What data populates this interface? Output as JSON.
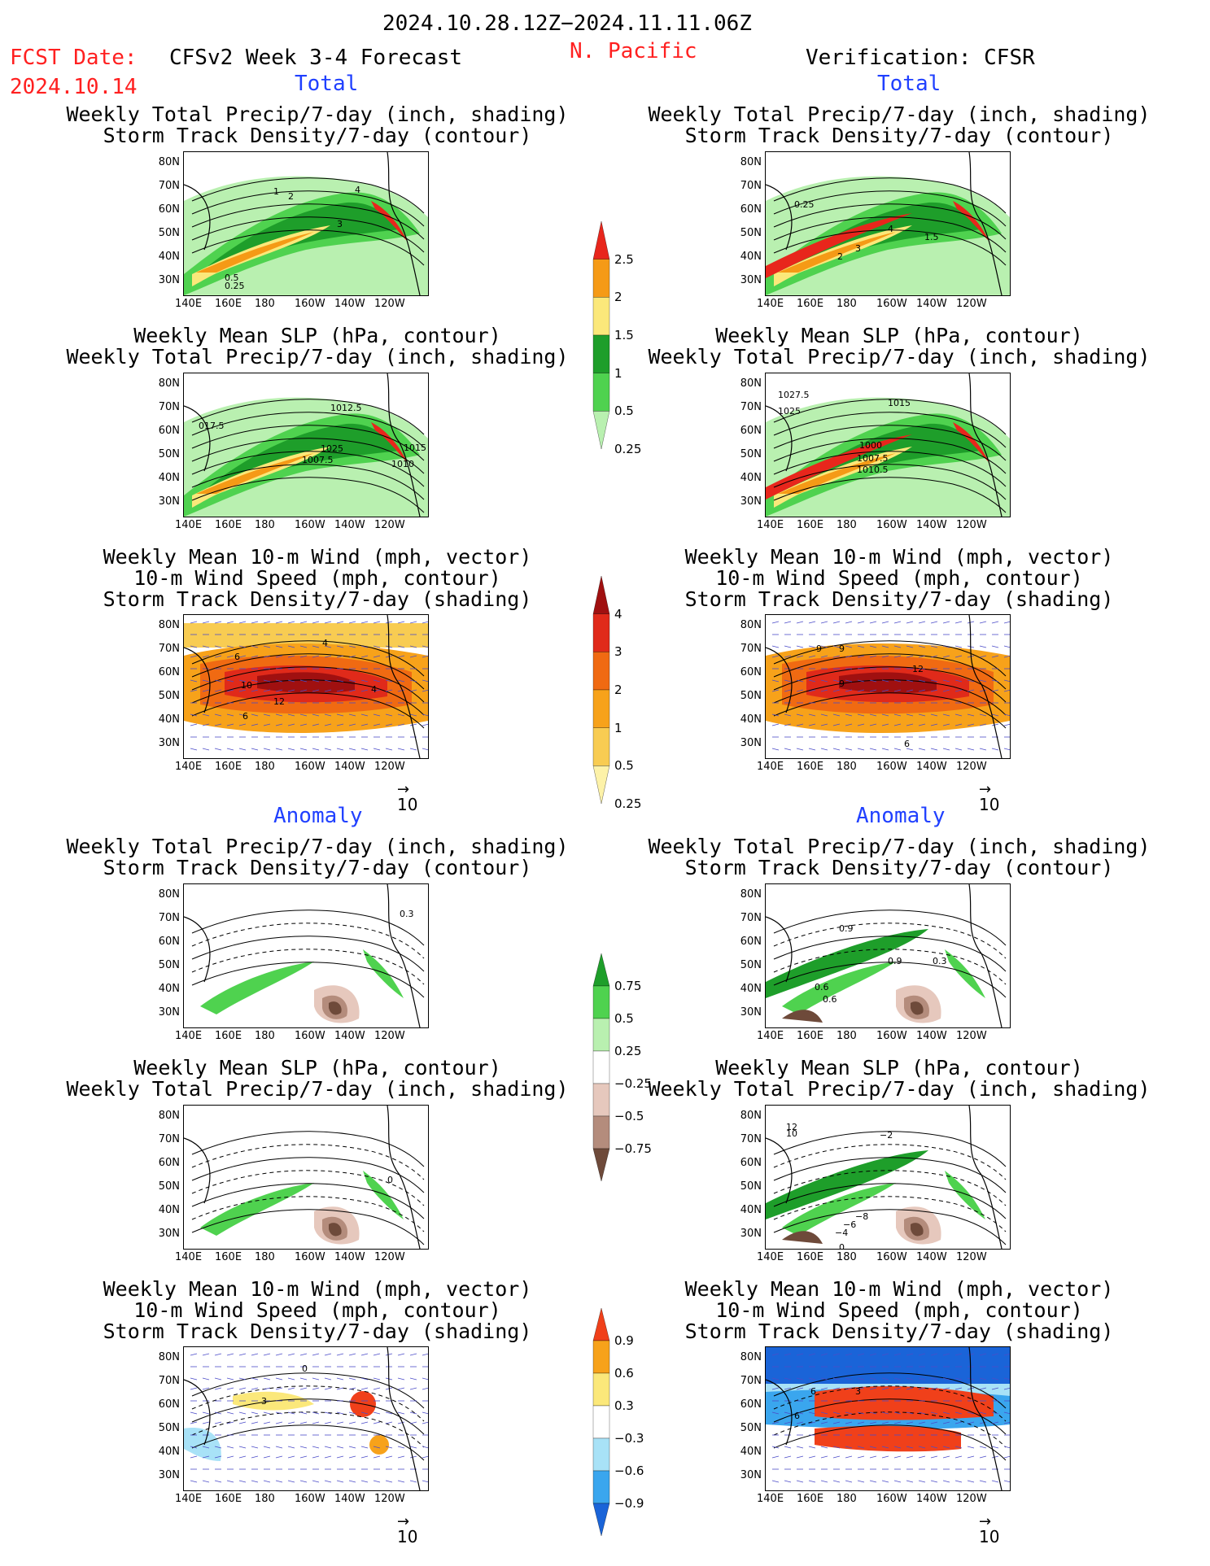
{
  "header": {
    "date_range": "2024.10.28.12Z−2024.11.11.06Z",
    "fcst_label": "FCST Date:",
    "fcst_date": "2024.10.14",
    "forecast_title": "CFSv2 Week 3-4 Forecast",
    "region": "N. Pacific",
    "verification": "Verification: CFSR"
  },
  "sections": {
    "total": "Total",
    "anomaly": "Anomaly"
  },
  "titles": {
    "precip_storm": [
      "Weekly Total Precip/7-day (inch, shading)",
      "Storm Track Density/7-day (contour)"
    ],
    "slp_precip": [
      "Weekly Mean SLP (hPa, contour)",
      "Weekly Total Precip/7-day (inch, shading)"
    ],
    "wind_storm": [
      "Weekly Mean 10-m Wind (mph, vector)",
      "10-m Wind Speed (mph, contour)",
      "Storm Track Density/7-day (shading)"
    ]
  },
  "axes": {
    "lat": [
      "80N",
      "70N",
      "60N",
      "50N",
      "40N",
      "30N"
    ],
    "lon": [
      "140E",
      "160E",
      "180",
      "160W",
      "140W",
      "120W"
    ]
  },
  "vector_ref": "10",
  "colorbars": {
    "precip_total": {
      "labels": [
        "2.5",
        "2",
        "1.5",
        "1",
        "0.5",
        "0.25"
      ],
      "colors": [
        "#e8261c",
        "#f59a16",
        "#fbe87a",
        "#1e9e2a",
        "#4fd24f",
        "#b9f0b0"
      ]
    },
    "storm_total": {
      "labels": [
        "4",
        "3",
        "2",
        "1",
        "0.5",
        "0.25"
      ],
      "colors": [
        "#a01010",
        "#e02a1a",
        "#f06a12",
        "#f7a21a",
        "#f8cc52",
        "#fdf2a8"
      ]
    },
    "precip_anom": {
      "labels": [
        "0.75",
        "0.5",
        "0.25",
        "−0.25",
        "−0.5",
        "−0.75"
      ],
      "colors": [
        "#1e9e2a",
        "#4fd24f",
        "#b9f0b0",
        "#ffffff",
        "#e6c8bd",
        "#b48c7c",
        "#6e4a3a"
      ]
    },
    "storm_anom": {
      "labels": [
        "0.9",
        "0.6",
        "0.3",
        "−0.3",
        "−0.6",
        "−0.9"
      ],
      "colors": [
        "#f0401a",
        "#f7a21a",
        "#fbe87a",
        "#ffffff",
        "#a8e2f7",
        "#3aa6ee",
        "#1a64d8"
      ]
    }
  },
  "contour_labels": {
    "p1": [
      "1",
      "2",
      "4",
      "3",
      "0.5",
      "0.25"
    ],
    "p2": [
      "0.25",
      "4",
      "1.5",
      "3",
      "2"
    ],
    "p3": [
      "017.5",
      "1012.5",
      "1007.5",
      "1010",
      "1015",
      "1025"
    ],
    "p4": [
      "1027.5",
      "1025",
      "1015",
      "1000",
      "1010.5",
      "1007.5"
    ],
    "p5": [
      "6",
      "10",
      "12",
      "4",
      "6",
      "4"
    ],
    "p6": [
      "9",
      "9",
      "12",
      "9",
      "6"
    ],
    "p7": [
      "0.3"
    ],
    "p8": [
      "0.9",
      "0.9",
      "0.3",
      "0.6",
      "0.6"
    ],
    "p9": [
      "0"
    ],
    "p10": [
      "12",
      "10",
      "−2",
      "−8",
      "−6",
      "−4",
      "0"
    ],
    "p11": [
      "0",
      "3"
    ],
    "p12": [
      "6",
      "3",
      "6"
    ]
  }
}
